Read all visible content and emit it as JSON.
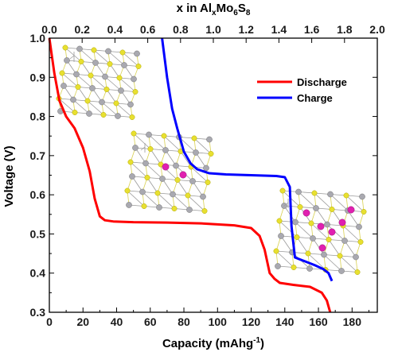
{
  "chart_data": {
    "type": "line",
    "title": "",
    "xlabel": "Capacity (mAhg",
    "xlabel_sup": "-1",
    "xlabel_tail": ")",
    "ylabel": "Voltage (V)",
    "top_xlabel_parts": [
      "x in Al",
      "x",
      "Mo",
      "6",
      "S",
      "8"
    ],
    "xlim": [
      0,
      195
    ],
    "ylim": [
      0.3,
      1.0
    ],
    "top_xlim": [
      0,
      2.0
    ],
    "x_ticks": [
      "0",
      "20",
      "40",
      "60",
      "80",
      "100",
      "120",
      "140",
      "160",
      "180"
    ],
    "y_ticks": [
      "0.3",
      "0.4",
      "0.5",
      "0.6",
      "0.7",
      "0.8",
      "0.9",
      "1.0"
    ],
    "top_ticks": [
      "0.0",
      "0.2",
      "0.4",
      "0.6",
      "0.8",
      "1.0",
      "1.2",
      "1.4",
      "1.6",
      "1.8",
      "2.0"
    ],
    "series": [
      {
        "name": "Discharge",
        "color": "#ff0000",
        "x": [
          0,
          3,
          6,
          10,
          15,
          20,
          24,
          27,
          30,
          33,
          38,
          50,
          70,
          90,
          110,
          120,
          125,
          128,
          131,
          134,
          137,
          145,
          155,
          162,
          165,
          167
        ],
        "y": [
          1.0,
          0.91,
          0.84,
          0.8,
          0.77,
          0.72,
          0.66,
          0.59,
          0.545,
          0.535,
          0.532,
          0.53,
          0.529,
          0.527,
          0.522,
          0.515,
          0.495,
          0.46,
          0.4,
          0.385,
          0.375,
          0.37,
          0.365,
          0.35,
          0.33,
          0.3
        ]
      },
      {
        "name": "Charge",
        "color": "#0000ff",
        "x": [
          67,
          70,
          73,
          76,
          80,
          84,
          88,
          95,
          105,
          120,
          135,
          140,
          143,
          144,
          146,
          152,
          158,
          163,
          166,
          168
        ],
        "y": [
          1.0,
          0.9,
          0.82,
          0.77,
          0.71,
          0.68,
          0.665,
          0.655,
          0.652,
          0.65,
          0.648,
          0.645,
          0.62,
          0.52,
          0.44,
          0.43,
          0.42,
          0.41,
          0.4,
          0.38
        ]
      }
    ],
    "legend": {
      "placement": "top-right",
      "entries": [
        "Discharge",
        "Charge"
      ]
    }
  }
}
